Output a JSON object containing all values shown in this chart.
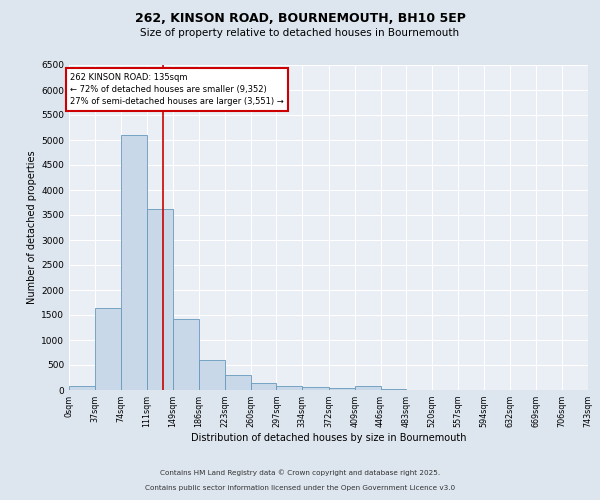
{
  "title1": "262, KINSON ROAD, BOURNEMOUTH, BH10 5EP",
  "title2": "Size of property relative to detached houses in Bournemouth",
  "xlabel": "Distribution of detached houses by size in Bournemouth",
  "ylabel": "Number of detached properties",
  "bin_edges": [
    0,
    37,
    74,
    111,
    149,
    186,
    223,
    260,
    297,
    334,
    372,
    409,
    446,
    483,
    520,
    557,
    594,
    632,
    669,
    706,
    743
  ],
  "bar_heights": [
    75,
    1650,
    5100,
    3620,
    1420,
    600,
    300,
    135,
    80,
    55,
    45,
    75,
    20,
    10,
    5,
    5,
    5,
    5,
    5,
    5
  ],
  "bar_color": "#c8d8e8",
  "bar_edge_color": "#6699bb",
  "vline_x": 135,
  "vline_color": "#cc0000",
  "annotation_title": "262 KINSON ROAD: 135sqm",
  "annotation_line1": "← 72% of detached houses are smaller (9,352)",
  "annotation_line2": "27% of semi-detached houses are larger (3,551) →",
  "annotation_box_color": "#cc0000",
  "ylim": [
    0,
    6500
  ],
  "yticks": [
    0,
    500,
    1000,
    1500,
    2000,
    2500,
    3000,
    3500,
    4000,
    4500,
    5000,
    5500,
    6000,
    6500
  ],
  "footnote1": "Contains HM Land Registry data © Crown copyright and database right 2025.",
  "footnote2": "Contains public sector information licensed under the Open Government Licence v3.0",
  "background_color": "#dde5ee",
  "plot_background_color": "#eaeff5"
}
